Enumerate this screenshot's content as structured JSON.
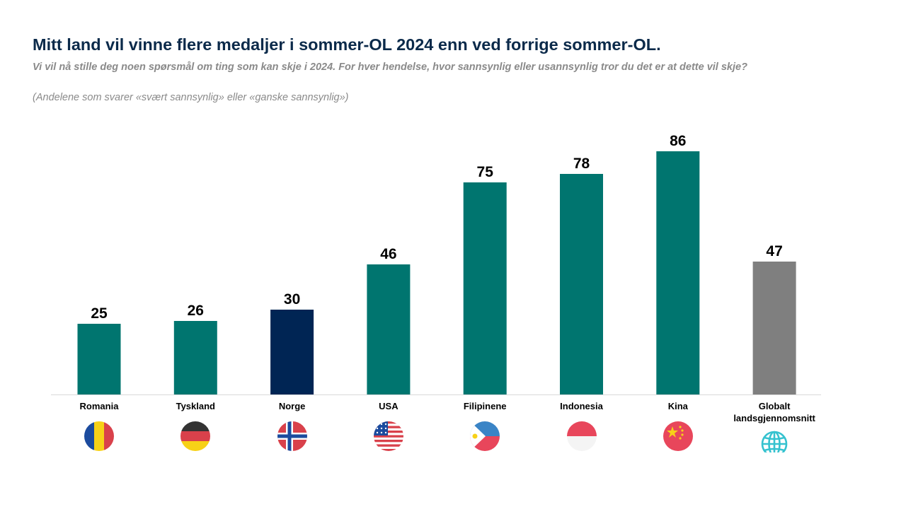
{
  "header": {
    "title": "Mitt land vil vinne flere medaljer  i sommer-OL  2024 enn ved forrige sommer-OL.",
    "subtitle": "Vi vil nå stille deg noen spørsmål om ting som kan skje i 2024. For hver hendelse,  hvor sannsynlig eller usannsynlig tror du det er at dette vil skje?",
    "note": "(Andelene som svarer «svært sannsynlig» eller «ganske sannsynlig»)"
  },
  "chart_data": {
    "type": "bar",
    "title": "Mitt land vil vinne flere medaljer  i sommer-OL  2024 enn ved forrige sommer-OL.",
    "xlabel": "",
    "ylabel": "",
    "ylim": [
      0,
      100
    ],
    "grid": false,
    "categories": [
      "Romania",
      "Tyskland",
      "Norge",
      "USA",
      "Filipinene",
      "Indonesia",
      "Kina",
      "Globalt landsgjennomsnitt"
    ],
    "values": [
      25,
      26,
      30,
      46,
      75,
      78,
      86,
      47
    ],
    "colors": [
      "#00756f",
      "#00756f",
      "#002554",
      "#00756f",
      "#00756f",
      "#00756f",
      "#00756f",
      "#7f7f7f"
    ],
    "icons": [
      "flag-romania-icon",
      "flag-germany-icon",
      "flag-norway-icon",
      "flag-usa-icon",
      "flag-philippines-icon",
      "flag-indonesia-icon",
      "flag-china-icon",
      "globe-icon"
    ]
  }
}
